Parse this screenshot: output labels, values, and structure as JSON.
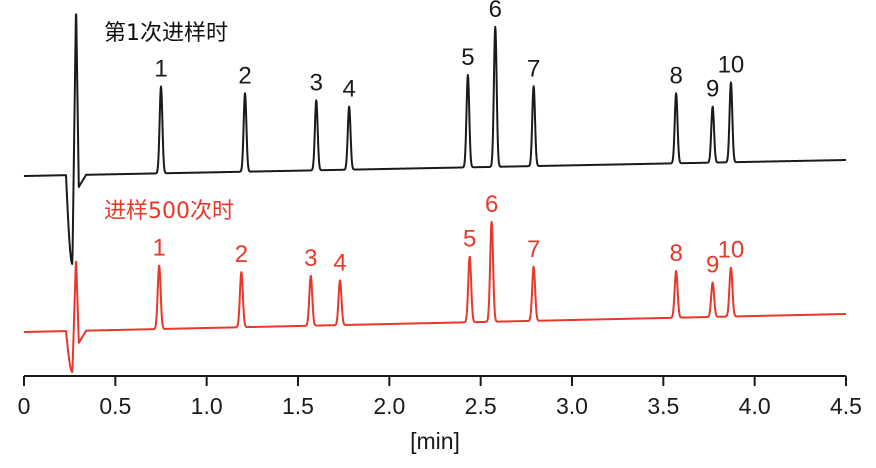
{
  "chart_data": {
    "type": "line",
    "xlabel": "[min]",
    "ylabel": "",
    "xlim": [
      0,
      4.5
    ],
    "x_ticks": [
      0,
      0.5,
      1.0,
      1.5,
      2.0,
      2.5,
      3.0,
      3.5,
      4.0,
      4.5
    ],
    "x_tick_labels": [
      "0",
      "0.5",
      "1.0",
      "1.5",
      "2.0",
      "2.5",
      "3.0",
      "3.5",
      "4.0",
      "4.5"
    ],
    "grid": false,
    "series": [
      {
        "name": "第1次进样时",
        "color": "#1a1a1a",
        "peaks": [
          {
            "label": "1",
            "rt": 0.75,
            "height": 0.62
          },
          {
            "label": "2",
            "rt": 1.21,
            "height": 0.56
          },
          {
            "label": "3",
            "rt": 1.6,
            "height": 0.5
          },
          {
            "label": "4",
            "rt": 1.78,
            "height": 0.45
          },
          {
            "label": "5",
            "rt": 2.43,
            "height": 0.66
          },
          {
            "label": "6",
            "rt": 2.58,
            "height": 1.0
          },
          {
            "label": "7",
            "rt": 2.79,
            "height": 0.57
          },
          {
            "label": "8",
            "rt": 3.57,
            "height": 0.5
          },
          {
            "label": "9",
            "rt": 3.77,
            "height": 0.4
          },
          {
            "label": "10",
            "rt": 3.87,
            "height": 0.57
          }
        ]
      },
      {
        "name": "进样500次时",
        "color": "#e8382a",
        "peaks": [
          {
            "label": "1",
            "rt": 0.74,
            "height": 0.61
          },
          {
            "label": "2",
            "rt": 1.19,
            "height": 0.53
          },
          {
            "label": "3",
            "rt": 1.57,
            "height": 0.48
          },
          {
            "label": "4",
            "rt": 1.73,
            "height": 0.43
          },
          {
            "label": "5",
            "rt": 2.44,
            "height": 0.63
          },
          {
            "label": "6",
            "rt": 2.56,
            "height": 0.96
          },
          {
            "label": "7",
            "rt": 2.79,
            "height": 0.52
          },
          {
            "label": "8",
            "rt": 3.57,
            "height": 0.45
          },
          {
            "label": "9",
            "rt": 3.77,
            "height": 0.33
          },
          {
            "label": "10",
            "rt": 3.87,
            "height": 0.47
          }
        ]
      }
    ]
  }
}
